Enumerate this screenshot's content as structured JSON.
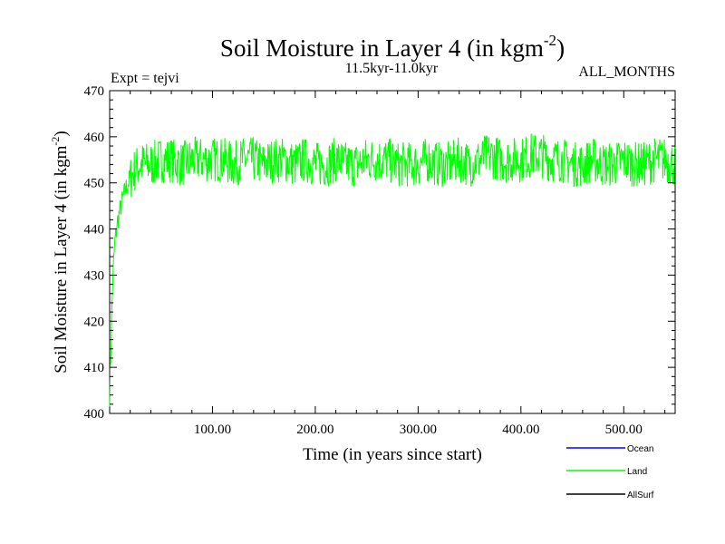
{
  "chart_data": {
    "type": "line",
    "title": "Soil Moisture in Layer 4 (in kgm",
    "title_sup": "-2",
    "title_close": ")",
    "subtitle_left": "Expt = tejvi",
    "subtitle_center": "11.5kyr-11.0kyr",
    "subtitle_right": "ALL_MONTHS",
    "xlabel": "Time (in years since start)",
    "ylabel": "Soil Moisture in Layer 4 (in kgm",
    "ylabel_sup": "-2",
    "ylabel_close": ")",
    "xlim": [
      0,
      550
    ],
    "ylim": [
      400,
      470
    ],
    "x_ticks": [
      100,
      200,
      300,
      400,
      500
    ],
    "x_tick_labels": [
      "100.00",
      "200.00",
      "300.00",
      "400.00",
      "500.00"
    ],
    "y_ticks": [
      400,
      410,
      420,
      430,
      440,
      450,
      460,
      470
    ],
    "y_tick_labels": [
      "400",
      "410",
      "420",
      "430",
      "440",
      "450",
      "460",
      "470"
    ],
    "grid": false,
    "legend_position": "bottom-right",
    "series": [
      {
        "name": "Ocean",
        "color": "#0000ff",
        "values": []
      },
      {
        "name": "Land",
        "color": "#00ff00",
        "x": [
          0,
          1,
          2,
          3,
          5,
          8,
          12,
          16,
          20,
          25,
          30,
          40,
          50,
          60,
          70,
          80,
          90,
          100,
          110,
          120,
          130,
          140,
          150,
          160,
          170,
          180,
          190,
          200,
          210,
          220,
          230,
          240,
          250,
          260,
          270,
          280,
          290,
          300,
          310,
          320,
          330,
          340,
          350,
          360,
          370,
          380,
          390,
          400,
          410,
          420,
          430,
          440,
          450,
          460,
          470,
          480,
          490,
          500,
          510,
          520,
          530,
          540,
          550
        ],
        "values": [
          404,
          412,
          421,
          429,
          437,
          442,
          446,
          449,
          451,
          453,
          454,
          454,
          455,
          455,
          454,
          455,
          455,
          455,
          455,
          454,
          455,
          455,
          454,
          455,
          455,
          454,
          455,
          454,
          454,
          455,
          454,
          454,
          455,
          455,
          455,
          454,
          454,
          454,
          455,
          454,
          454,
          455,
          454,
          455,
          456,
          455,
          455,
          455,
          456,
          456,
          455,
          455,
          454,
          454,
          455,
          454,
          454,
          455,
          454,
          454,
          455,
          455,
          454
        ],
        "noise_amplitude": 5
      },
      {
        "name": "AllSurf",
        "color": "#000000",
        "values": []
      }
    ]
  }
}
